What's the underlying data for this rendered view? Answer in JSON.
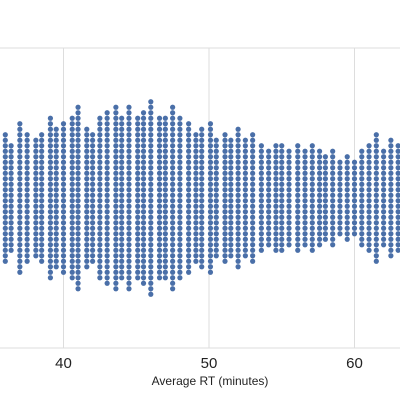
{
  "chart_data": {
    "type": "scatter",
    "style": "beeswarm",
    "title": "",
    "xlabel": "Average RT (minutes)",
    "ylabel": "",
    "xlim": [
      35.8,
      63.0
    ],
    "x_ticks": [
      40,
      50,
      60
    ],
    "grid": {
      "vertical": true,
      "horizontal_lines_at_edges": true
    },
    "point_color": "#4a6fa8",
    "columns": [
      {
        "x": 36.0,
        "n": 24
      },
      {
        "x": 36.4,
        "n": 20
      },
      {
        "x": 37.0,
        "n": 28
      },
      {
        "x": 37.5,
        "n": 24
      },
      {
        "x": 38.1,
        "n": 22
      },
      {
        "x": 38.5,
        "n": 24
      },
      {
        "x": 39.1,
        "n": 30
      },
      {
        "x": 39.5,
        "n": 26
      },
      {
        "x": 40.0,
        "n": 28
      },
      {
        "x": 40.6,
        "n": 30
      },
      {
        "x": 41.0,
        "n": 34
      },
      {
        "x": 41.6,
        "n": 26
      },
      {
        "x": 42.0,
        "n": 24
      },
      {
        "x": 42.5,
        "n": 30
      },
      {
        "x": 43.0,
        "n": 32
      },
      {
        "x": 43.6,
        "n": 34
      },
      {
        "x": 44.0,
        "n": 30
      },
      {
        "x": 44.5,
        "n": 34
      },
      {
        "x": 45.1,
        "n": 30
      },
      {
        "x": 45.5,
        "n": 32
      },
      {
        "x": 46.0,
        "n": 36
      },
      {
        "x": 46.6,
        "n": 30
      },
      {
        "x": 47.0,
        "n": 30
      },
      {
        "x": 47.5,
        "n": 34
      },
      {
        "x": 48.0,
        "n": 30
      },
      {
        "x": 48.6,
        "n": 28
      },
      {
        "x": 49.1,
        "n": 24
      },
      {
        "x": 49.5,
        "n": 26
      },
      {
        "x": 50.1,
        "n": 28
      },
      {
        "x": 50.5,
        "n": 22
      },
      {
        "x": 51.1,
        "n": 24
      },
      {
        "x": 51.5,
        "n": 22
      },
      {
        "x": 52.0,
        "n": 26
      },
      {
        "x": 52.5,
        "n": 22
      },
      {
        "x": 53.0,
        "n": 24
      },
      {
        "x": 53.6,
        "n": 20
      },
      {
        "x": 54.1,
        "n": 18
      },
      {
        "x": 54.6,
        "n": 20
      },
      {
        "x": 55.0,
        "n": 20
      },
      {
        "x": 55.5,
        "n": 18
      },
      {
        "x": 56.1,
        "n": 20
      },
      {
        "x": 56.6,
        "n": 18
      },
      {
        "x": 57.1,
        "n": 20
      },
      {
        "x": 57.6,
        "n": 18
      },
      {
        "x": 58.0,
        "n": 16
      },
      {
        "x": 58.5,
        "n": 18
      },
      {
        "x": 59.0,
        "n": 14
      },
      {
        "x": 59.5,
        "n": 16
      },
      {
        "x": 60.0,
        "n": 14
      },
      {
        "x": 60.5,
        "n": 18
      },
      {
        "x": 61.0,
        "n": 20
      },
      {
        "x": 61.5,
        "n": 24
      },
      {
        "x": 62.0,
        "n": 18
      },
      {
        "x": 62.5,
        "n": 22
      },
      {
        "x": 63.0,
        "n": 20
      }
    ]
  }
}
